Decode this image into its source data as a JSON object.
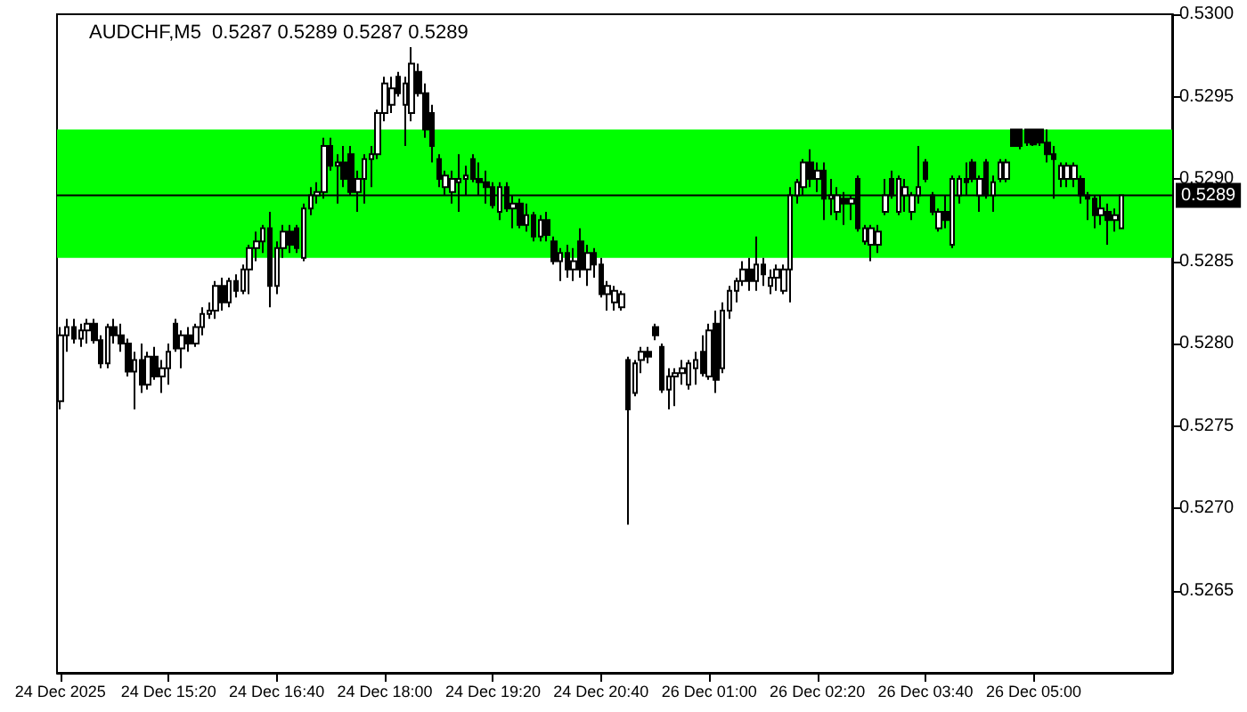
{
  "chart_data": {
    "type": "candlestick",
    "title": "AUDCHF,M5  0.5287 0.5289 0.5287 0.5289",
    "categories": [
      "24 Dec 2025",
      null,
      null,
      null,
      null,
      null,
      null,
      null,
      null,
      null,
      null,
      null,
      null,
      null,
      null,
      null,
      "24 Dec 15:20",
      null,
      null,
      null,
      null,
      null,
      null,
      null,
      null,
      null,
      null,
      null,
      null,
      null,
      null,
      null,
      "24 Dec 16:40",
      null,
      null,
      null,
      null,
      null,
      null,
      null,
      null,
      null,
      null,
      null,
      null,
      null,
      null,
      null,
      "24 Dec 18:00",
      null,
      null,
      null,
      null,
      null,
      null,
      null,
      null,
      null,
      null,
      null,
      null,
      null,
      null,
      null,
      "24 Dec 19:20",
      null,
      null,
      null,
      null,
      null,
      null,
      null,
      null,
      null,
      null,
      null,
      null,
      null,
      null,
      null,
      "24 Dec 20:40",
      null,
      null,
      null,
      null,
      null,
      null,
      null,
      null,
      null,
      null,
      null,
      null,
      null,
      null,
      null,
      "26 Dec 01:00",
      null,
      null,
      null,
      null,
      null,
      null,
      null,
      null,
      null,
      null,
      null,
      null,
      null,
      null,
      null,
      "26 Dec 02:20",
      null,
      null,
      null,
      null,
      null,
      null,
      null,
      null,
      null,
      null,
      null,
      null,
      null,
      null,
      null,
      "26 Dec 03:40",
      null,
      null,
      null,
      null,
      null,
      null,
      null,
      null,
      null,
      null,
      null,
      null,
      null,
      null,
      null,
      "26 Dec 05:00",
      null,
      null,
      null,
      null,
      null,
      null,
      null,
      null,
      null,
      null,
      null,
      null,
      null
    ],
    "color": "#000000",
    "ohlc": [
      [
        0.52765,
        0.5281,
        0.5276,
        0.52805
      ],
      [
        0.52805,
        0.52815,
        0.52795,
        0.5281
      ],
      [
        0.5281,
        0.52815,
        0.528,
        0.52803
      ],
      [
        0.52803,
        0.52812,
        0.52798,
        0.52808
      ],
      [
        0.52808,
        0.52815,
        0.528,
        0.52812
      ],
      [
        0.52812,
        0.52815,
        0.528,
        0.52802
      ],
      [
        0.52802,
        0.52805,
        0.52785,
        0.52788
      ],
      [
        0.52788,
        0.52812,
        0.52785,
        0.5281
      ],
      [
        0.5281,
        0.52815,
        0.528,
        0.52805
      ],
      [
        0.52805,
        0.52812,
        0.52795,
        0.528
      ],
      [
        0.528,
        0.52803,
        0.5278,
        0.52783
      ],
      [
        0.52783,
        0.52795,
        0.5276,
        0.5279
      ],
      [
        0.5279,
        0.528,
        0.5277,
        0.52775
      ],
      [
        0.52775,
        0.52795,
        0.52772,
        0.52792
      ],
      [
        0.52792,
        0.52798,
        0.52778,
        0.5278
      ],
      [
        0.5278,
        0.5279,
        0.5277,
        0.52785
      ],
      [
        0.52785,
        0.528,
        0.52775,
        0.52795
      ],
      [
        0.52812,
        0.52815,
        0.52795,
        0.52797
      ],
      [
        0.52797,
        0.52808,
        0.52785,
        0.52805
      ],
      [
        0.52805,
        0.5281,
        0.52795,
        0.528
      ],
      [
        0.528,
        0.52812,
        0.52798,
        0.5281
      ],
      [
        0.5281,
        0.52822,
        0.52805,
        0.52818
      ],
      [
        0.52818,
        0.52825,
        0.52815,
        0.5282
      ],
      [
        0.5282,
        0.52838,
        0.52815,
        0.52835
      ],
      [
        0.52835,
        0.5284,
        0.5282,
        0.52825
      ],
      [
        0.52825,
        0.5284,
        0.52822,
        0.52838
      ],
      [
        0.52838,
        0.52842,
        0.52828,
        0.52832
      ],
      [
        0.52832,
        0.52848,
        0.5283,
        0.52845
      ],
      [
        0.52845,
        0.5286,
        0.5283,
        0.52858
      ],
      [
        0.52858,
        0.52868,
        0.5285,
        0.52862
      ],
      [
        0.52862,
        0.52872,
        0.52855,
        0.5287
      ],
      [
        0.5287,
        0.5288,
        0.52822,
        0.52835
      ],
      [
        0.52835,
        0.52862,
        0.5283,
        0.52858
      ],
      [
        0.52858,
        0.52872,
        0.52852,
        0.52868
      ],
      [
        0.52868,
        0.52872,
        0.52855,
        0.5286
      ],
      [
        0.5287,
        0.52872,
        0.52855,
        0.52858
      ],
      [
        0.52852,
        0.52885,
        0.5285,
        0.52882
      ],
      [
        0.52882,
        0.52895,
        0.52878,
        0.5289
      ],
      [
        0.5289,
        0.52898,
        0.52885,
        0.52892
      ],
      [
        0.52892,
        0.52925,
        0.52888,
        0.5292
      ],
      [
        0.5292,
        0.52925,
        0.52905,
        0.52908
      ],
      [
        0.52908,
        0.52915,
        0.52885,
        0.5291
      ],
      [
        0.5291,
        0.5292,
        0.52895,
        0.529
      ],
      [
        0.52915,
        0.5292,
        0.5289,
        0.52892
      ],
      [
        0.52892,
        0.52905,
        0.5288,
        0.529
      ],
      [
        0.529,
        0.52915,
        0.52885,
        0.52912
      ],
      [
        0.52912,
        0.5292,
        0.52895,
        0.52915
      ],
      [
        0.52915,
        0.52942,
        0.52912,
        0.5294
      ],
      [
        0.5294,
        0.52962,
        0.52935,
        0.52958
      ],
      [
        0.52945,
        0.52962,
        0.5294,
        0.52955
      ],
      [
        0.52962,
        0.52965,
        0.5295,
        0.52952
      ],
      [
        0.52945,
        0.52962,
        0.5292,
        0.52958
      ],
      [
        0.5294,
        0.5298,
        0.52935,
        0.5297
      ],
      [
        0.52965,
        0.5297,
        0.5295,
        0.52952
      ],
      [
        0.52952,
        0.52958,
        0.52925,
        0.5293
      ],
      [
        0.5294,
        0.52945,
        0.5291,
        0.5292
      ],
      [
        0.52912,
        0.52915,
        0.52895,
        0.529
      ],
      [
        0.52895,
        0.52905,
        0.5289,
        0.52902
      ],
      [
        0.52892,
        0.52905,
        0.52885,
        0.529
      ],
      [
        0.52898,
        0.52915,
        0.5288,
        0.529
      ],
      [
        0.529,
        0.52908,
        0.5289,
        0.52902
      ],
      [
        0.52912,
        0.52915,
        0.52898,
        0.529
      ],
      [
        0.529,
        0.5291,
        0.5289,
        0.52898
      ],
      [
        0.52898,
        0.52905,
        0.52885,
        0.52895
      ],
      [
        0.52895,
        0.52898,
        0.52882,
        0.52884
      ],
      [
        0.5288,
        0.52898,
        0.52875,
        0.52895
      ],
      [
        0.52895,
        0.52898,
        0.5288,
        0.52882
      ],
      [
        0.52882,
        0.5289,
        0.5287,
        0.52885
      ],
      [
        0.52885,
        0.52888,
        0.5287,
        0.52872
      ],
      [
        0.52872,
        0.52885,
        0.52868,
        0.52878
      ],
      [
        0.52878,
        0.5288,
        0.52862,
        0.52865
      ],
      [
        0.52865,
        0.52878,
        0.52862,
        0.52875
      ],
      [
        0.52875,
        0.5288,
        0.52862,
        0.52866
      ],
      [
        0.52862,
        0.52865,
        0.52848,
        0.5285
      ],
      [
        0.5285,
        0.52858,
        0.52838,
        0.52855
      ],
      [
        0.52855,
        0.5286,
        0.5284,
        0.52845
      ],
      [
        0.52845,
        0.52858,
        0.52838,
        0.5285
      ],
      [
        0.52862,
        0.5287,
        0.5284,
        0.52845
      ],
      [
        0.52845,
        0.5286,
        0.52835,
        0.52855
      ],
      [
        0.52855,
        0.52858,
        0.5284,
        0.52848
      ],
      [
        0.52848,
        0.52852,
        0.52828,
        0.5283
      ],
      [
        0.5283,
        0.52838,
        0.5282,
        0.52835
      ],
      [
        0.52825,
        0.52835,
        0.5282,
        0.52832
      ],
      [
        0.52822,
        0.52832,
        0.5282,
        0.5283
      ],
      [
        0.5279,
        0.52792,
        0.5269,
        0.5276
      ],
      [
        0.5277,
        0.5279,
        0.52768,
        0.52788
      ],
      [
        0.5279,
        0.52798,
        0.52782,
        0.52795
      ],
      [
        0.52795,
        0.52798,
        0.52788,
        0.52792
      ],
      [
        0.5281,
        0.52812,
        0.52802,
        0.52805
      ],
      [
        0.52798,
        0.528,
        0.5277,
        0.52772
      ],
      [
        0.52772,
        0.52785,
        0.5276,
        0.5278
      ],
      [
        0.5278,
        0.52785,
        0.52762,
        0.52782
      ],
      [
        0.52782,
        0.5279,
        0.52775,
        0.52785
      ],
      [
        0.52775,
        0.5279,
        0.52772,
        0.52788
      ],
      [
        0.52785,
        0.52795,
        0.52775,
        0.5279
      ],
      [
        0.52795,
        0.52805,
        0.5278,
        0.52782
      ],
      [
        0.5278,
        0.52812,
        0.52778,
        0.52808
      ],
      [
        0.52812,
        0.5282,
        0.5277,
        0.52778
      ],
      [
        0.52785,
        0.52825,
        0.52782,
        0.5282
      ],
      [
        0.5282,
        0.52835,
        0.52815,
        0.52832
      ],
      [
        0.52832,
        0.5284,
        0.52825,
        0.52838
      ],
      [
        0.52838,
        0.5285,
        0.52835,
        0.52845
      ],
      [
        0.52845,
        0.52852,
        0.52832,
        0.52838
      ],
      [
        0.52838,
        0.52865,
        0.52832,
        0.52848
      ],
      [
        0.52848,
        0.52852,
        0.52835,
        0.52842
      ],
      [
        0.52835,
        0.52845,
        0.5283,
        0.5284
      ],
      [
        0.5284,
        0.52848,
        0.52832,
        0.52845
      ],
      [
        0.52832,
        0.52848,
        0.5283,
        0.52845
      ],
      [
        0.52845,
        0.52895,
        0.52825,
        0.5289
      ],
      [
        0.5289,
        0.529,
        0.52885,
        0.52898
      ],
      [
        0.52895,
        0.52912,
        0.5289,
        0.5291
      ],
      [
        0.5291,
        0.52918,
        0.52895,
        0.529
      ],
      [
        0.529,
        0.5291,
        0.52892,
        0.52905
      ],
      [
        0.52905,
        0.5291,
        0.52875,
        0.52888
      ],
      [
        0.52888,
        0.529,
        0.52878,
        0.5289
      ],
      [
        0.5288,
        0.52895,
        0.52875,
        0.5289
      ],
      [
        0.52888,
        0.52892,
        0.52872,
        0.52885
      ],
      [
        0.52885,
        0.5289,
        0.52875,
        0.52888
      ],
      [
        0.529,
        0.52902,
        0.52868,
        0.5287
      ],
      [
        0.52862,
        0.52872,
        0.5286,
        0.5287
      ],
      [
        0.5286,
        0.52872,
        0.5285,
        0.5287
      ],
      [
        0.5286,
        0.52872,
        0.52855,
        0.52868
      ],
      [
        0.5288,
        0.529,
        0.52878,
        0.5289
      ],
      [
        0.529,
        0.52905,
        0.52888,
        0.5289
      ],
      [
        0.5288,
        0.52902,
        0.52878,
        0.529
      ],
      [
        0.5289,
        0.529,
        0.5288,
        0.52895
      ],
      [
        0.5288,
        0.52892,
        0.52875,
        0.5289
      ],
      [
        0.5289,
        0.5292,
        0.52885,
        0.52895
      ],
      [
        0.5291,
        0.52912,
        0.52898,
        0.529
      ],
      [
        0.5289,
        0.52892,
        0.52878,
        0.5288
      ],
      [
        0.5287,
        0.52882,
        0.52868,
        0.5288
      ],
      [
        0.5288,
        0.5289,
        0.5287,
        0.52875
      ],
      [
        0.5286,
        0.52902,
        0.52858,
        0.529
      ],
      [
        0.5289,
        0.52902,
        0.52885,
        0.529
      ],
      [
        0.529,
        0.5291,
        0.5289,
        0.52898
      ],
      [
        0.5291,
        0.52912,
        0.52898,
        0.529
      ],
      [
        0.5289,
        0.52902,
        0.5288,
        0.529
      ],
      [
        0.5291,
        0.52912,
        0.52888,
        0.5289
      ],
      [
        0.5289,
        0.52902,
        0.5288,
        0.52898
      ],
      [
        0.529,
        0.52912,
        0.52898,
        0.5291
      ],
      [
        0.529,
        0.52912,
        0.52898,
        0.5291
      ],
      [
        0.5293,
        0.5293,
        0.5292,
        0.5292
      ],
      [
        0.5293,
        0.5293,
        0.52918,
        0.5292
      ],
      [
        0.5293,
        0.5293,
        0.5292,
        0.52922
      ],
      [
        0.5293,
        0.5293,
        0.5292,
        0.52921
      ],
      [
        0.5293,
        0.5293,
        0.5292,
        0.52922
      ],
      [
        0.52922,
        0.5293,
        0.5291,
        0.52915
      ],
      [
        0.52915,
        0.5292,
        0.52888,
        0.52912
      ],
      [
        0.529,
        0.5291,
        0.52895,
        0.52908
      ],
      [
        0.529,
        0.5291,
        0.52895,
        0.52908
      ],
      [
        0.529,
        0.5291,
        0.52895,
        0.52908
      ],
      [
        0.529,
        0.52902,
        0.52885,
        0.5289
      ],
      [
        0.5289,
        0.52892,
        0.52875,
        0.52888
      ],
      [
        0.52888,
        0.5289,
        0.5287,
        0.52878
      ],
      [
        0.52878,
        0.5289,
        0.52872,
        0.52882
      ],
      [
        0.5288,
        0.52885,
        0.5286,
        0.52875
      ],
      [
        0.52875,
        0.52882,
        0.52868,
        0.52878
      ],
      [
        0.5287,
        0.5289,
        0.5287,
        0.5289
      ]
    ],
    "ylim": [
      0.526,
      0.53
    ],
    "yticks": [
      {
        "value": 0.5265,
        "label": "0.5265"
      },
      {
        "value": 0.527,
        "label": "0.5270"
      },
      {
        "value": 0.5275,
        "label": "0.5275"
      },
      {
        "value": 0.528,
        "label": "0.5280"
      },
      {
        "value": 0.5285,
        "label": "0.5285"
      },
      {
        "value": 0.529,
        "label": "0.5290"
      },
      {
        "value": 0.5295,
        "label": "0.5295"
      },
      {
        "value": 0.53,
        "label": "0.5300"
      }
    ],
    "ref_lines": [
      {
        "axis": "y",
        "value": 0.5289,
        "label": "0.5289",
        "color": "#000000"
      }
    ],
    "bands": [
      {
        "axis": "y",
        "from": 0.52852,
        "to": 0.5293,
        "color": "#00ff00"
      }
    ],
    "grid": false
  }
}
